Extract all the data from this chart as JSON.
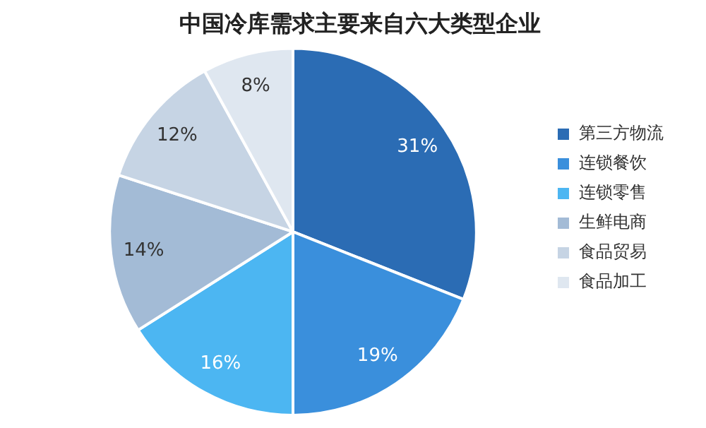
{
  "chart_data": {
    "type": "pie",
    "title": "中国冷库需求主要来自六大类型企业",
    "categories": [
      "第三方物流",
      "连锁餐饮",
      "连锁零售",
      "生鲜电商",
      "食品贸易",
      "食品加工"
    ],
    "values": [
      31,
      19,
      16,
      14,
      12,
      8
    ],
    "colors": [
      "#2b6cb4",
      "#3a8fdc",
      "#4cb6f2",
      "#a3bbd6",
      "#c6d4e4",
      "#dfe7f0"
    ],
    "value_labels": [
      "31%",
      "19%",
      "16%",
      "14%",
      "12%",
      "8%"
    ],
    "legend": "right"
  }
}
